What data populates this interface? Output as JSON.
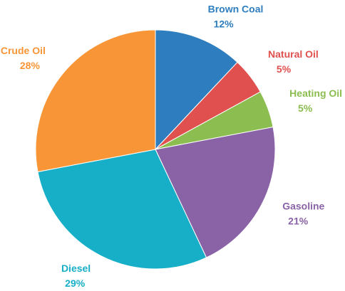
{
  "chart_data": {
    "type": "pie",
    "categories": [
      "Brown Coal",
      "Natural Oil",
      "Heating Oil",
      "Gasoline",
      "Diesel",
      "Crude Oil"
    ],
    "values": [
      12,
      5,
      5,
      21,
      29,
      28
    ],
    "value_labels": [
      "12%",
      "5%",
      "5%",
      "21%",
      "29%",
      "28%"
    ],
    "colors": [
      "#2e7ebf",
      "#e0504e",
      "#8bbd50",
      "#8a63a7",
      "#17afc8",
      "#f79537"
    ]
  }
}
